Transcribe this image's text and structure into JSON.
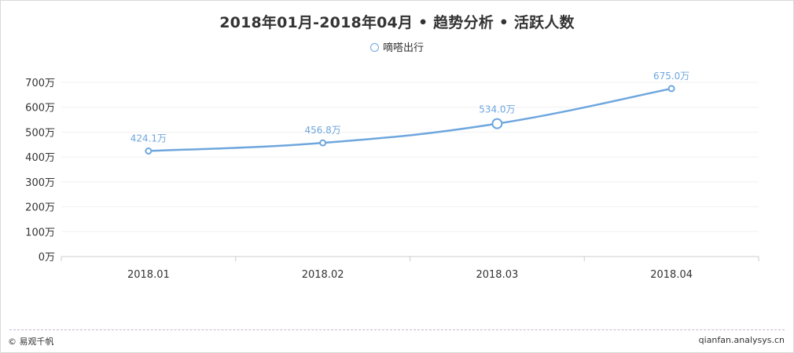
{
  "chart_data": {
    "type": "line",
    "title": "2018年01月-2018年04月 • 趋势分析 • 活跃人数",
    "categories": [
      "2018.01",
      "2018.02",
      "2018.03",
      "2018.04"
    ],
    "series": [
      {
        "name": "嘀嗒出行",
        "values": [
          424.1,
          456.8,
          534.0,
          675.0
        ],
        "color": "#6ea6de"
      }
    ],
    "data_labels": [
      "424.1万",
      "456.8万",
      "534.0万",
      "675.0万"
    ],
    "y_ticks": [
      "0万",
      "100万",
      "200万",
      "300万",
      "400万",
      "500万",
      "600万",
      "700万"
    ],
    "ylim": [
      0,
      700
    ],
    "unit": "万",
    "legend_position": "top-center",
    "grid": true,
    "highlighted_point_index": 2
  },
  "footer": {
    "copyright": "© 易观千帆",
    "site": "qianfan.analysys.cn"
  }
}
